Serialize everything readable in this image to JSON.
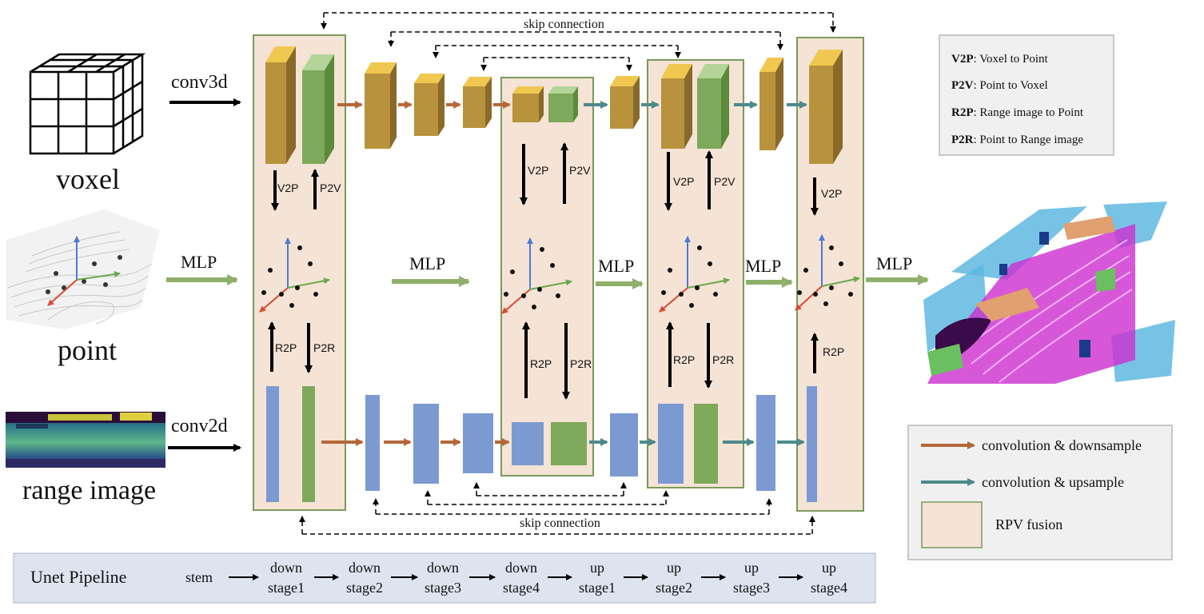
{
  "inputs": {
    "conv3d": "conv3d",
    "voxel": "voxel",
    "mlp": "MLP",
    "point": "point",
    "conv2d": "conv2d",
    "range_image": "range image"
  },
  "top": {
    "skip_connection": "skip connection"
  },
  "bottom": {
    "skip_connection": "skip connection"
  },
  "fusion": {
    "v2p": "V2P",
    "p2v": "P2V",
    "r2p": "R2P",
    "p2r": "P2R"
  },
  "mlp_label": "MLP",
  "legend_top": {
    "items": [
      {
        "abbr": "V2P",
        "desc": ": Voxel to Point"
      },
      {
        "abbr": "P2V",
        "desc": ": Point to Voxel"
      },
      {
        "abbr": "R2P",
        "desc": ": Range image to Point"
      },
      {
        "abbr": "P2R",
        "desc": ": Point to Range image"
      }
    ]
  },
  "legend_bottom": {
    "conv_down": "convolution & downsample",
    "conv_up": "convolution & upsample",
    "rpv": "RPV fusion"
  },
  "pipeline": {
    "title": "Unet Pipeline",
    "stem": "stem",
    "stages": [
      {
        "top": "down",
        "bottom": "stage1"
      },
      {
        "top": "down",
        "bottom": "stage2"
      },
      {
        "top": "down",
        "bottom": "stage3"
      },
      {
        "top": "down",
        "bottom": "stage4"
      },
      {
        "top": "up",
        "bottom": "stage1"
      },
      {
        "top": "up",
        "bottom": "stage2"
      },
      {
        "top": "up",
        "bottom": "stage3"
      },
      {
        "top": "up",
        "bottom": "stage4"
      }
    ]
  },
  "colors": {
    "fusion_fill": "#f5e3d5",
    "fusion_border": "#7a9a5a",
    "voxel_block": "#b8923c",
    "voxel_top": "#f0c850",
    "green_block": "#7ea85a",
    "blue_block": "#7b9ad2",
    "down_arrow": "#b5673a",
    "up_arrow": "#4c8a8a",
    "mlp_arrow": "#8fb06a",
    "pipeline_bg": "#dde3ef"
  }
}
